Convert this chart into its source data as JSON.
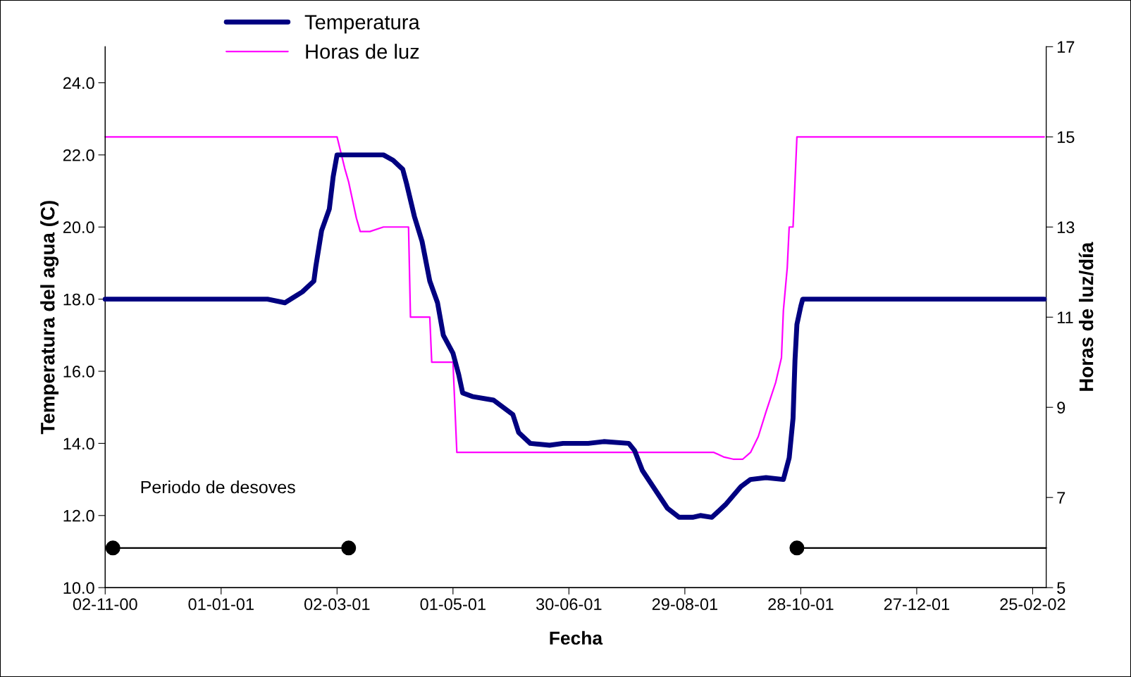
{
  "chart_data": {
    "type": "line",
    "xlabel": "Fecha",
    "ylabel": "Temperatura del agua (C)",
    "y2label": "Horas de luz/día",
    "xlim": [
      "2000-11-02",
      "2002-03-04"
    ],
    "xticks": [
      {
        "value": "2000-11-02",
        "label": "02-11-00"
      },
      {
        "value": "2001-01-01",
        "label": "01-01-01"
      },
      {
        "value": "2001-03-02",
        "label": "02-03-01"
      },
      {
        "value": "2001-05-01",
        "label": "01-05-01"
      },
      {
        "value": "2001-06-30",
        "label": "30-06-01"
      },
      {
        "value": "2001-08-29",
        "label": "29-08-01"
      },
      {
        "value": "2001-10-28",
        "label": "28-10-01"
      },
      {
        "value": "2001-12-27",
        "label": "27-12-01"
      },
      {
        "value": "2002-02-25",
        "label": "25-02-02"
      }
    ],
    "ylim": [
      10,
      25
    ],
    "yticks": [
      {
        "value": 10,
        "label": "10.0"
      },
      {
        "value": 12,
        "label": "12.0"
      },
      {
        "value": 14,
        "label": "14.0"
      },
      {
        "value": 16,
        "label": "16.0"
      },
      {
        "value": 18,
        "label": "18.0"
      },
      {
        "value": 20,
        "label": "20.0"
      },
      {
        "value": 22,
        "label": "22.0"
      },
      {
        "value": 24,
        "label": "24.0"
      }
    ],
    "y2lim": [
      5,
      17
    ],
    "y2ticks": [
      5,
      7,
      9,
      11,
      13,
      15,
      17
    ],
    "grid": false,
    "legend": "top left",
    "annotations": [
      "Periodo de desoves"
    ],
    "series": [
      {
        "name": "Temperatura",
        "color": "#000080",
        "x": [
          "2000-11-02",
          "2001-01-25",
          "2001-02-03",
          "2001-02-09",
          "2001-02-12",
          "2001-02-18",
          "2001-02-19",
          "2001-02-22",
          "2001-02-26",
          "2001-02-28",
          "2001-03-02",
          "2001-03-26",
          "2001-03-31",
          "2001-04-05",
          "2001-04-07",
          "2001-04-11",
          "2001-04-15",
          "2001-04-19",
          "2001-04-23",
          "2001-04-26",
          "2001-05-01",
          "2001-05-04",
          "2001-05-06",
          "2001-05-11",
          "2001-05-22",
          "2001-06-01",
          "2001-06-04",
          "2001-06-10",
          "2001-06-20",
          "2001-06-27",
          "2001-07-10",
          "2001-07-18",
          "2001-07-31",
          "2001-08-03",
          "2001-08-07",
          "2001-08-20",
          "2001-08-26",
          "2001-09-02",
          "2001-09-06",
          "2001-09-12",
          "2001-09-19",
          "2001-09-27",
          "2001-10-02",
          "2001-10-10",
          "2001-10-19",
          "2001-10-22",
          "2001-10-24",
          "2001-10-25",
          "2001-10-26",
          "2001-10-28",
          "2001-10-29",
          "2002-03-03"
        ],
        "values": [
          18.0,
          18.0,
          17.9,
          18.1,
          18.2,
          18.5,
          18.9,
          19.9,
          20.5,
          21.4,
          22.0,
          22.0,
          21.85,
          21.6,
          21.2,
          20.3,
          19.6,
          18.5,
          17.9,
          17.0,
          16.5,
          15.9,
          15.4,
          15.3,
          15.2,
          14.8,
          14.3,
          14.0,
          13.95,
          14.0,
          14.0,
          14.05,
          14.0,
          13.8,
          13.25,
          12.2,
          11.95,
          11.95,
          12.0,
          11.95,
          12.3,
          12.8,
          13.0,
          13.05,
          13.0,
          13.6,
          14.7,
          16.3,
          17.3,
          17.8,
          18.0,
          18.0
        ]
      },
      {
        "name": "Horas de luz",
        "color": "#ff00ff",
        "axis": "y2",
        "x": [
          "2000-11-02",
          "2001-03-02",
          "2001-03-06",
          "2001-03-08",
          "2001-03-12",
          "2001-03-14",
          "2001-03-19",
          "2001-03-26",
          "2001-04-08",
          "2001-04-09",
          "2001-04-19",
          "2001-04-20",
          "2001-05-01",
          "2001-05-02",
          "2001-05-03",
          "2001-09-13",
          "2001-09-18",
          "2001-09-23",
          "2001-09-28",
          "2001-10-02",
          "2001-10-06",
          "2001-10-10",
          "2001-10-15",
          "2001-10-18",
          "2001-10-19",
          "2001-10-21",
          "2001-10-22",
          "2001-10-24",
          "2001-10-25",
          "2001-10-26",
          "2002-03-03"
        ],
        "values": [
          15.0,
          15.0,
          14.3,
          14.0,
          13.2,
          12.9,
          12.9,
          13.0,
          13.0,
          11.0,
          11.0,
          10.0,
          10.0,
          9.0,
          8.0,
          8.0,
          7.9,
          7.85,
          7.85,
          8.0,
          8.35,
          8.9,
          9.55,
          10.1,
          11.15,
          12.1,
          13.0,
          13.0,
          14.0,
          15.0,
          15.0
        ]
      },
      {
        "color": "#000000",
        "x": [
          "2000-11-06",
          "2001-03-08"
        ],
        "values": [
          11.1,
          11.1
        ]
      },
      {
        "color": "#000000",
        "x": [
          "2001-10-26",
          "2002-03-04"
        ],
        "values": [
          11.1,
          11.1
        ]
      },
      {
        "type": "scatter",
        "marker": "circle",
        "color": "#000000",
        "x": [
          "2000-11-06",
          "2001-03-08",
          "2001-10-26"
        ],
        "values": [
          11.1,
          11.1,
          11.1
        ]
      }
    ]
  }
}
